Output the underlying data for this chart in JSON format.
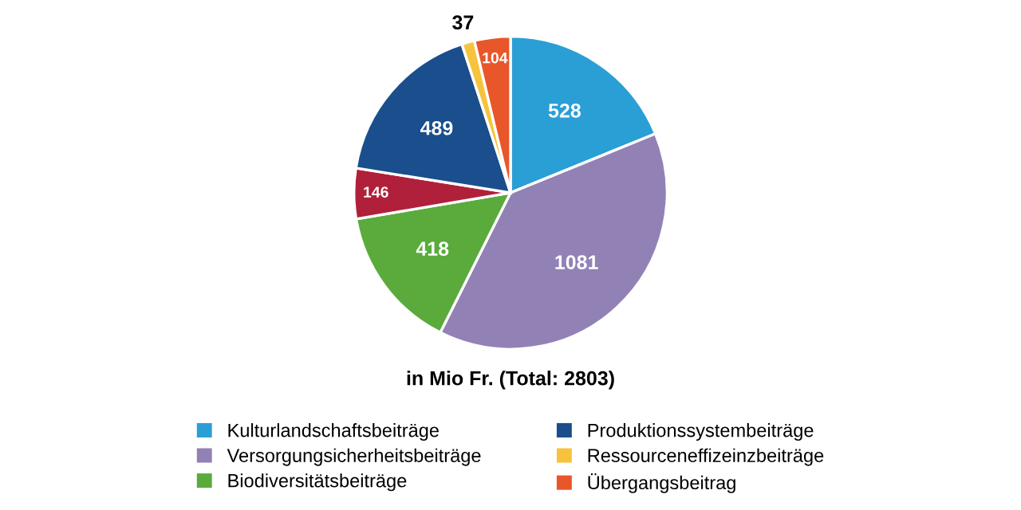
{
  "chart_data": {
    "type": "pie",
    "xlabel": "in Mio Fr. (Total: 2803)",
    "categories": [
      "Kulturlandschaftsbeiträge",
      "Versorgungsicherheitsbeiträge",
      "Biodiversitätsbeiträge",
      null,
      "Produktionssystembeiträge",
      "Ressourceneffizeinzbeiträge",
      "Übergangsbeitrag"
    ],
    "values": [
      528,
      1081,
      418,
      146,
      489,
      37,
      104
    ],
    "colors": [
      "#2a9fd6",
      "#9281b5",
      "#5aab3c",
      "#b0203a",
      "#1a4e8c",
      "#f7c33c",
      "#e8562a"
    ],
    "data_labels": true,
    "legend": "bottom"
  }
}
